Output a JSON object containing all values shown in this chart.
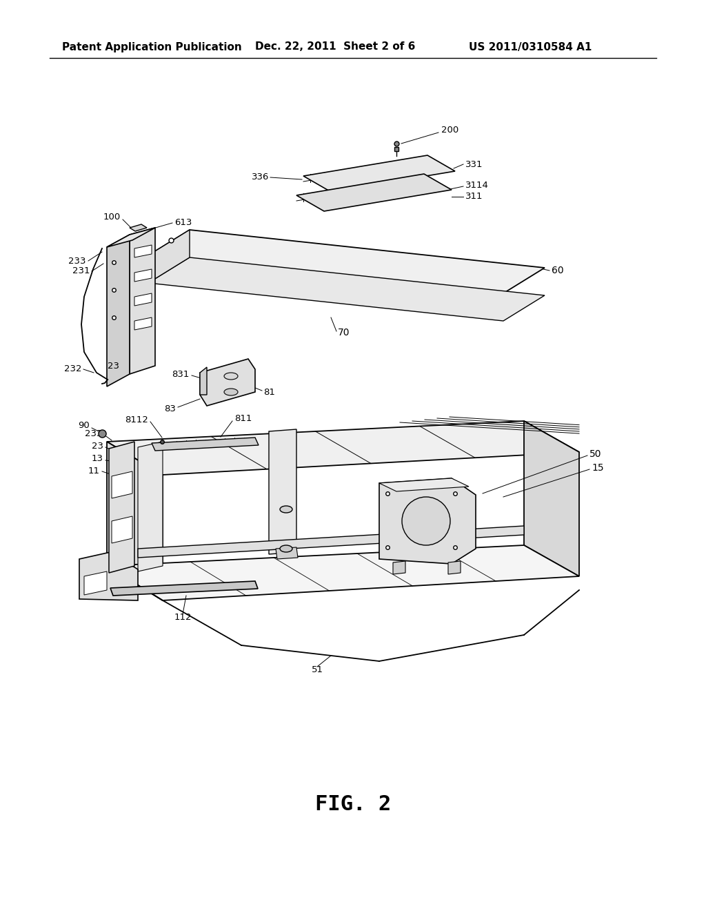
{
  "background_color": "#ffffff",
  "header_left": "Patent Application Publication",
  "header_center": "Dec. 22, 2011  Sheet 2 of 6",
  "header_right": "US 2011/0310584 A1",
  "figure_label": "FIG. 2",
  "lc": "#000000",
  "lw": 1.3,
  "fig_w": 10.24,
  "fig_h": 13.2,
  "dpi": 100
}
